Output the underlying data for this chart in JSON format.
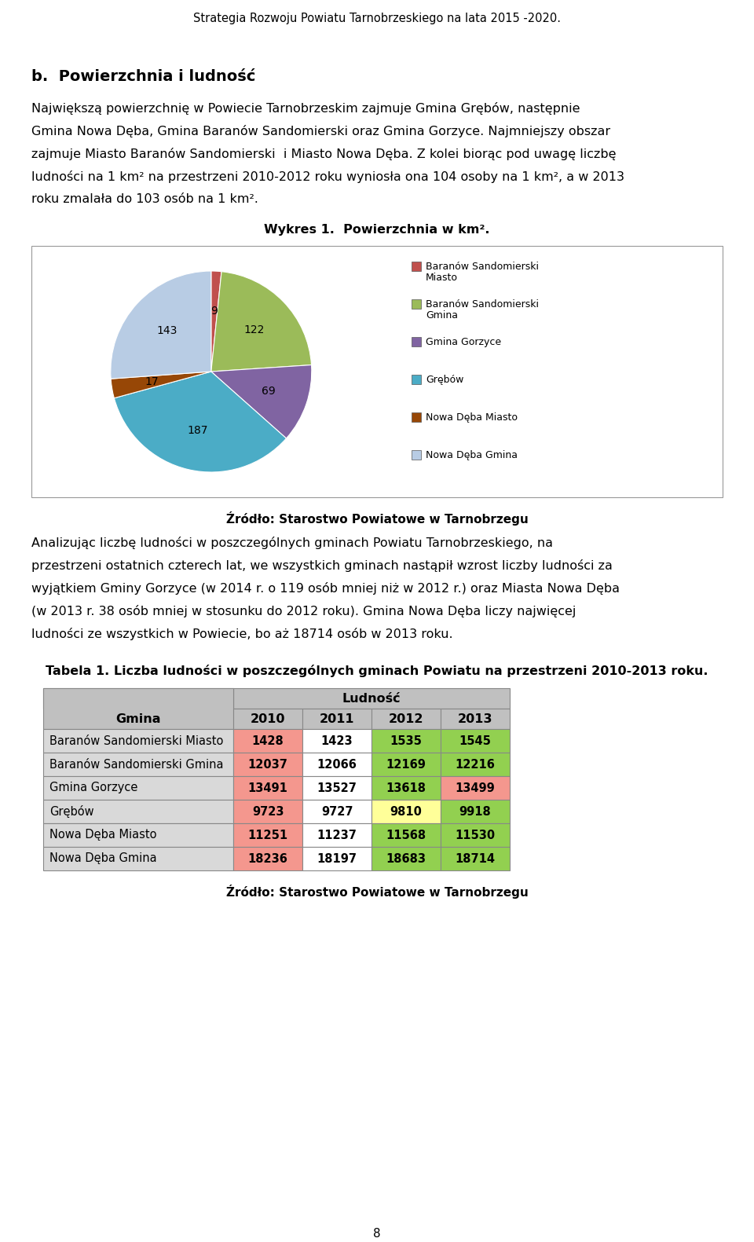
{
  "page_title": "Strategia Rozwoju Powiatu Tarnobrzeskiego na lata 2015 -2020.",
  "section_title": "b.  Powierzchnia i ludność",
  "para1_lines": [
    "Największą powierzchnię w Powiecie Tarnobrzeskim zajmuje Gmina Grębów, następnie",
    "Gmina Nowa Dęba, Gmina Baranów Sandomierski oraz Gmina Gorzyce. Najmniejszy obszar",
    "zajmuje Miasto Baranów Sandomierski  i Miasto Nowa Dęba. Z kolei biorąc pod uwagę liczbę",
    "ludności na 1 km² na przestrzeni 2010-2012 roku wyniosła ona 104 osoby na 1 km², a w 2013",
    "roku zmalała do 103 osób na 1 km²."
  ],
  "chart_title": "Wykres 1.  Powierzchnia w km².",
  "pie_labels": [
    "Baranów Sandomierski\nMiasto",
    "Baranów Sandomierski\nGmina",
    "Gmina Gorzyce",
    "Grębów",
    "Nowa Dęba Miasto",
    "Nowa Dęba Gmina"
  ],
  "pie_values": [
    9,
    122,
    69,
    187,
    17,
    143
  ],
  "pie_colors": [
    "#c0504d",
    "#9bbb59",
    "#8064a2",
    "#4bacc6",
    "#974706",
    "#b8cce4"
  ],
  "chart_source": "Źródło: Starostwo Powiatowe w Tarnobrzegu",
  "para2_lines": [
    "Analizując liczbę ludności w poszczególnych gminach Powiatu Tarnobrzeskiego, na",
    "przestrzeni ostatnich czterech lat, we wszystkich gminach nastąpił wzrost liczby ludności za",
    "wyjątkiem Gminy Gorzyce (w 2014 r. o 119 osób mniej niż w 2012 r.) oraz Miasta Nowa Dęba",
    "(w 2013 r. 38 osób mniej w stosunku do 2012 roku). Gmina Nowa Dęba liczy najwięcej",
    "ludności ze wszystkich w Powiecie, bo aż 18714 osób w 2013 roku."
  ],
  "table_title": "Tabela 1. Liczba ludności w poszczególnych gminach Powiatu na przestrzeni 2010-2013 roku.",
  "table_header_top": "Ludność",
  "table_col_header": "Gmina",
  "table_years": [
    "2010",
    "2011",
    "2012",
    "2013"
  ],
  "table_rows": [
    [
      "Baranów Sandomierski Miasto",
      "1428",
      "1423",
      "1535",
      "1545"
    ],
    [
      "Baranów Sandomierski Gmina",
      "12037",
      "12066",
      "12169",
      "12216"
    ],
    [
      "Gmina Gorzyce",
      "13491",
      "13527",
      "13618",
      "13499"
    ],
    [
      "Grębów",
      "9723",
      "9727",
      "9810",
      "9918"
    ],
    [
      "Nowa Dęba Miasto",
      "11251",
      "11237",
      "11568",
      "11530"
    ],
    [
      "Nowa Dęba Gmina",
      "18236",
      "18197",
      "18683",
      "18714"
    ]
  ],
  "table_cell_colors": [
    [
      "#f4978e",
      "#ffffff",
      "#92d050",
      "#92d050"
    ],
    [
      "#f4978e",
      "#ffffff",
      "#92d050",
      "#92d050"
    ],
    [
      "#f4978e",
      "#ffffff",
      "#92d050",
      "#f4978e"
    ],
    [
      "#f4978e",
      "#ffffff",
      "#ffff99",
      "#92d050"
    ],
    [
      "#f4978e",
      "#ffffff",
      "#92d050",
      "#92d050"
    ],
    [
      "#f4978e",
      "#ffffff",
      "#92d050",
      "#92d050"
    ]
  ],
  "table_source": "Źródło: Starostwo Powiatowe w Tarnobrzegu",
  "page_number": "8",
  "background_color": "#ffffff"
}
